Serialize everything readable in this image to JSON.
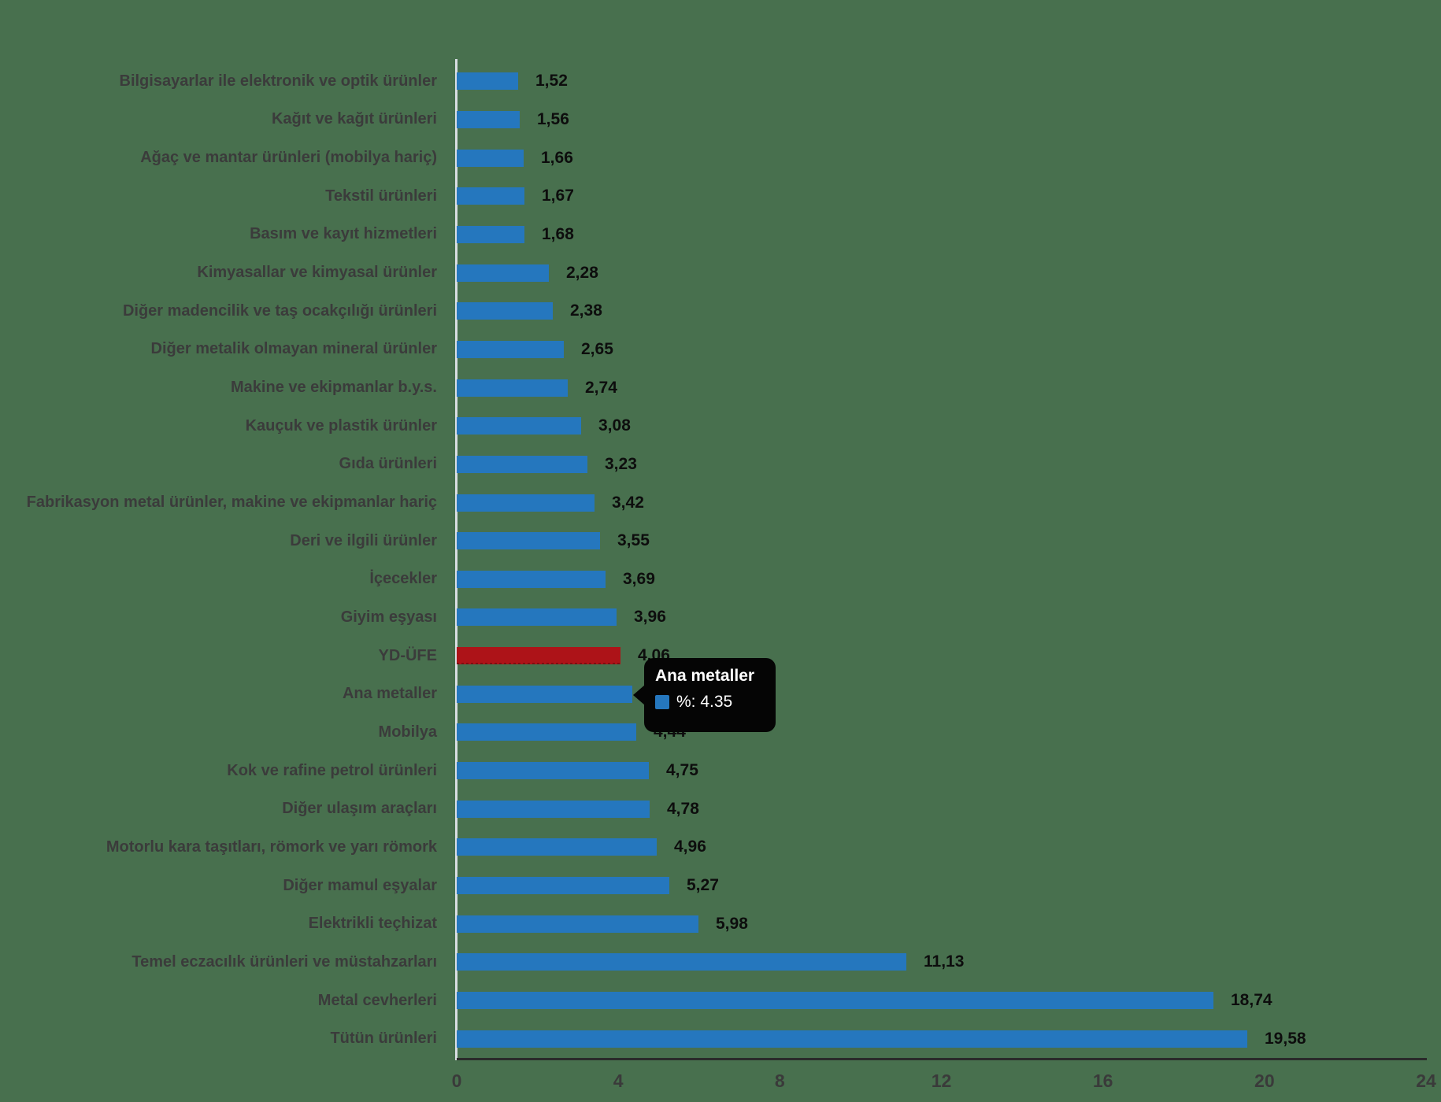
{
  "colors": {
    "background": "#48704e",
    "bar_blue": "#2577be",
    "bar_red": "#ad1318",
    "category_label": "#3b3b3b",
    "value_label": "#0d0d0d",
    "tick_label": "#3a3a3a",
    "axis_line": "#2a2a2a",
    "baseline": "#d9dee3",
    "tooltip_bg": "#050505",
    "tooltip_text": "#ffffff"
  },
  "chart_data": {
    "type": "bar",
    "orientation": "horizontal",
    "title": "",
    "xlabel": "",
    "ylabel": "",
    "xlim": [
      0,
      24
    ],
    "x_ticks": [
      0,
      4,
      8,
      12,
      16,
      20,
      24
    ],
    "grid": false,
    "legend": false,
    "decimal_separator": ",",
    "highlight_index": 15,
    "series_name": "%",
    "categories": [
      "Bilgisayarlar ile elektronik ve optik ürünler",
      "Kağıt ve kağıt ürünleri",
      "Ağaç ve mantar ürünleri (mobilya hariç)",
      "Tekstil ürünleri",
      "Basım ve kayıt hizmetleri",
      "Kimyasallar ve kimyasal ürünler",
      "Diğer madencilik ve taş ocakçılığı ürünleri",
      "Diğer metalik olmayan mineral ürünler",
      "Makine ve ekipmanlar b.y.s.",
      "Kauçuk ve plastik ürünler",
      "Gıda ürünleri",
      "Fabrikasyon metal ürünler, makine ve ekipmanlar hariç",
      "Deri ve ilgili ürünler",
      "İçecekler",
      "Giyim eşyası",
      "YD-ÜFE",
      "Ana metaller",
      "Mobilya",
      "Kok ve rafine petrol ürünleri",
      "Diğer ulaşım araçları",
      "Motorlu kara taşıtları, römork ve yarı römork",
      "Diğer mamul eşyalar",
      "Elektrikli teçhizat",
      "Temel eczacılık ürünleri ve müstahzarları",
      "Metal cevherleri",
      "Tütün ürünleri"
    ],
    "values": [
      1.52,
      1.56,
      1.66,
      1.67,
      1.68,
      2.28,
      2.38,
      2.65,
      2.74,
      3.08,
      3.23,
      3.42,
      3.55,
      3.69,
      3.96,
      4.06,
      4.35,
      4.44,
      4.75,
      4.78,
      4.96,
      5.27,
      5.98,
      11.13,
      18.74,
      19.58
    ],
    "value_labels": [
      "1,52",
      "1,56",
      "1,66",
      "1,67",
      "1,68",
      "2,28",
      "2,38",
      "2,65",
      "2,74",
      "3,08",
      "3,23",
      "3,42",
      "3,55",
      "3,69",
      "3,96",
      "4,06",
      "4,35",
      "4,44",
      "4,75",
      "4,78",
      "4,96",
      "5,27",
      "5,98",
      "11,13",
      "18,74",
      "19,58"
    ]
  },
  "tooltip": {
    "title": "Ana metaller",
    "value_line": "%: 4.35"
  }
}
